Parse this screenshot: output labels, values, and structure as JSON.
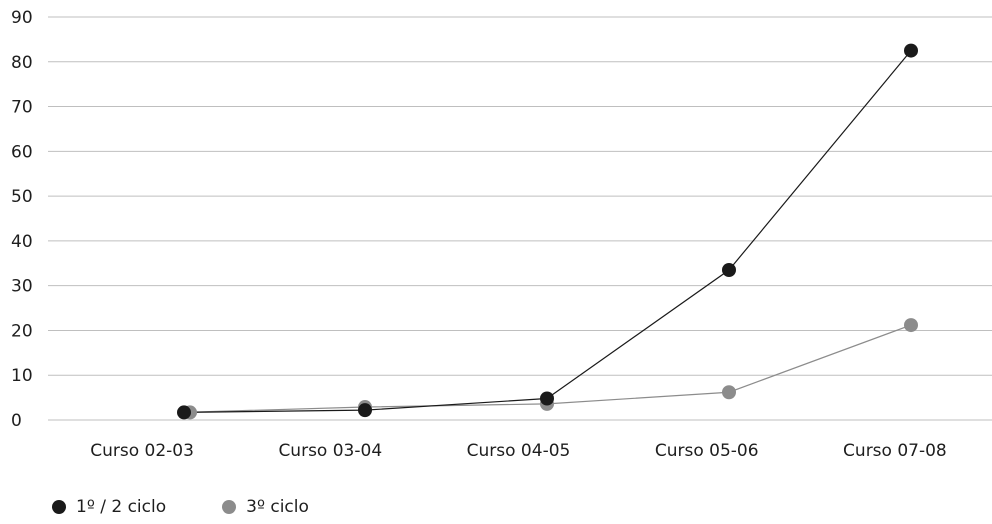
{
  "chart_data": {
    "type": "line",
    "categories": [
      "Curso 02-03",
      "Curso 03-04",
      "Curso 04-05",
      "Curso 05-06",
      "Curso 07-08"
    ],
    "series": [
      {
        "name": "1º / 2 ciclo",
        "values": [
          1.7,
          2.2,
          4.8,
          33.5,
          82.5
        ],
        "color": "#1a1a1a"
      },
      {
        "name": "3º ciclo",
        "values": [
          1.7,
          2.9,
          3.6,
          6.2,
          21.2
        ],
        "color": "#8c8c8c"
      }
    ],
    "yticks": [
      "0",
      "10",
      "20",
      "30",
      "40",
      "50",
      "60",
      "70",
      "80",
      "90"
    ],
    "ylim": [
      0,
      90
    ],
    "grid": true,
    "legend_position": "bottom-left",
    "title": "",
    "xlabel": "",
    "ylabel": ""
  }
}
